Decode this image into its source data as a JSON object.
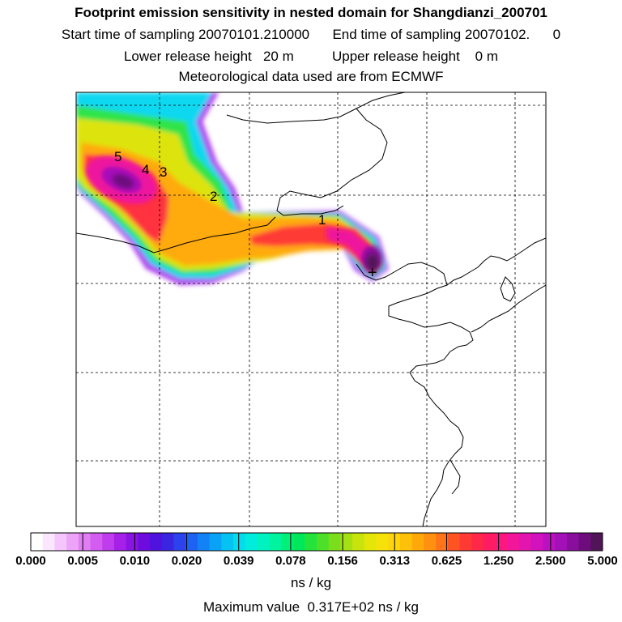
{
  "header": {
    "title": "Footprint emission sensitivity in nested domain for Shangdianzi_200701",
    "sampling_line": "Start time of sampling 20070101.210000      End time of sampling 20070102.      0",
    "release_line": "Lower release height   20 m          Upper release height    0 m",
    "met_line": "Meteorological data used are from ECMWF"
  },
  "map": {
    "day_markers": [
      "1",
      "2",
      "3",
      "4",
      "5"
    ],
    "receptor_symbol": "+"
  },
  "colorbar": {
    "tick_labels": [
      "0.000",
      "0.005",
      "0.010",
      "0.020",
      "0.039",
      "0.078",
      "0.156",
      "0.313",
      "0.625",
      "1.250",
      "2.500",
      "5.000"
    ],
    "colors": [
      "#ffffff",
      "#fbe6ff",
      "#f4c6fb",
      "#eda4f8",
      "#e17ef4",
      "#d45cf0",
      "#c03ded",
      "#a620e8",
      "#8a14e4",
      "#6e0ce0",
      "#5012de",
      "#3a26e2",
      "#2c42ec",
      "#1e62f2",
      "#1282f6",
      "#0aa2f6",
      "#06c2f2",
      "#02dcec",
      "#00ecdc",
      "#00f2c0",
      "#00f4a0",
      "#00f07c",
      "#00e85a",
      "#24e43c",
      "#4ce028",
      "#7ade1c",
      "#a4e014",
      "#c8e40c",
      "#e4e60a",
      "#f6e20a",
      "#fed40a",
      "#ffc00a",
      "#ffa80a",
      "#ff9010",
      "#ff7418",
      "#ff5422",
      "#ff3a34",
      "#ff2848",
      "#ff1c62",
      "#fc1880",
      "#f2169a",
      "#e414ae",
      "#d212bc",
      "#bc10c2",
      "#a410b8",
      "#8a0e9e",
      "#6e0c7e",
      "#521458"
    ],
    "units": "ns / kg",
    "max_value_text": "Maximum value  0.317E+02 ns / kg"
  }
}
